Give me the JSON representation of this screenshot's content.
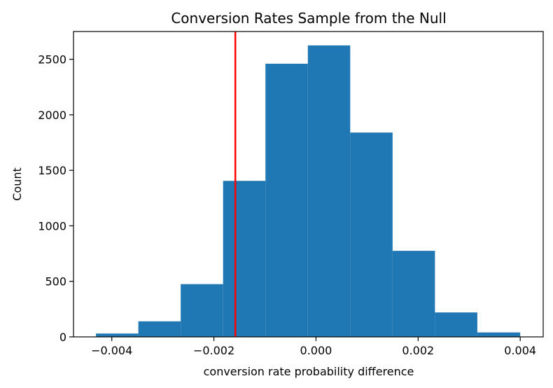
{
  "chart_data": {
    "type": "bar",
    "title": "Conversion Rates Sample from the Null",
    "xlabel": "conversion rate probability difference",
    "ylabel": "Count",
    "bins": [
      {
        "x0": -0.00431,
        "x1": -0.00348,
        "count": 30
      },
      {
        "x0": -0.00348,
        "x1": -0.00265,
        "count": 140
      },
      {
        "x0": -0.00265,
        "x1": -0.00182,
        "count": 475
      },
      {
        "x0": -0.00182,
        "x1": -0.00099,
        "count": 1405
      },
      {
        "x0": -0.00099,
        "x1": -0.00016,
        "count": 2460
      },
      {
        "x0": -0.00016,
        "x1": 0.00067,
        "count": 2625
      },
      {
        "x0": 0.00067,
        "x1": 0.0015,
        "count": 1840
      },
      {
        "x0": 0.0015,
        "x1": 0.00233,
        "count": 775
      },
      {
        "x0": 0.00233,
        "x1": 0.00316,
        "count": 220
      },
      {
        "x0": 0.00316,
        "x1": 0.004,
        "count": 40
      }
    ],
    "xlim": [
      -0.00475,
      0.00445
    ],
    "ylim": [
      0,
      2750
    ],
    "xticks": [
      -0.004,
      -0.002,
      0.0,
      0.002,
      0.004
    ],
    "xtick_labels": [
      "−0.004",
      "−0.002",
      "0.000",
      "0.002",
      "0.004"
    ],
    "yticks": [
      0,
      500,
      1000,
      1500,
      2000,
      2500
    ],
    "ytick_labels": [
      "0",
      "500",
      "1000",
      "1500",
      "2000",
      "2500"
    ],
    "vline": {
      "x": -0.00158,
      "color": "#ff0000"
    },
    "bar_color": "#1f77b4",
    "grid": false
  }
}
